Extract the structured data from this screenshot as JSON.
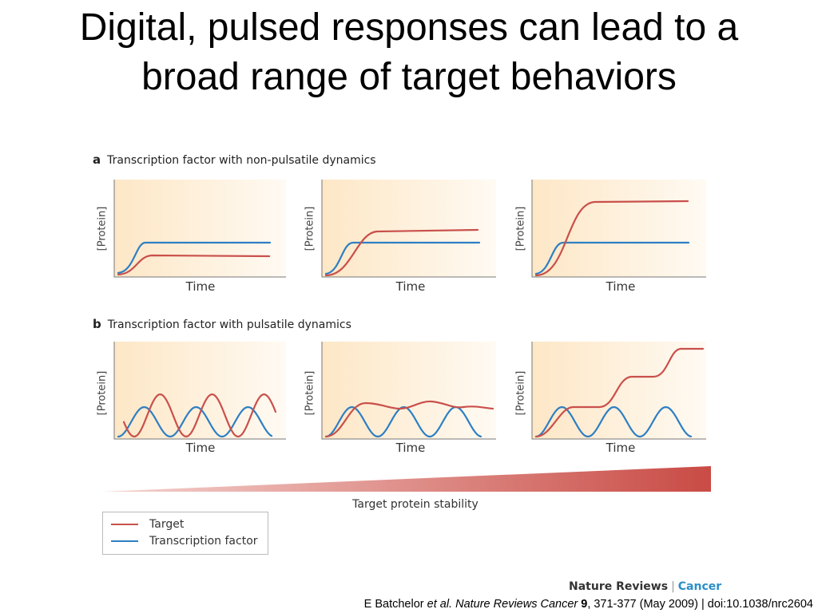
{
  "slide": {
    "title": "Digital, pulsed responses can lead to a broad range of target behaviors"
  },
  "figure": {
    "section_a": {
      "letter": "a",
      "label": "Transcription factor with non-pulsatile dynamics"
    },
    "section_b": {
      "letter": "b",
      "label": "Transcription factor with pulsatile dynamics"
    },
    "y_axis_label": "[Protein]",
    "x_axis_label": "Time",
    "stability_label": "Target protein stability",
    "legend": [
      {
        "label": "Target",
        "color": "#c9504b"
      },
      {
        "label": "Transcription factor",
        "color": "#2e7fc3"
      }
    ],
    "colors": {
      "target": "#c9504b",
      "transcription_factor": "#2e7fc3",
      "panel_bg": "#fbe9cf",
      "stability_wedge": "#c9504b"
    }
  },
  "journal": {
    "name": "Nature Reviews",
    "sep": "|",
    "section": "Cancer"
  },
  "citation": {
    "authors": "E Batchelor ",
    "etal": "et al. Nature Reviews Cancer",
    "volume": " 9",
    "rest": ", 371-377 (May 2009) | doi:10.1038/nrc2604"
  }
}
